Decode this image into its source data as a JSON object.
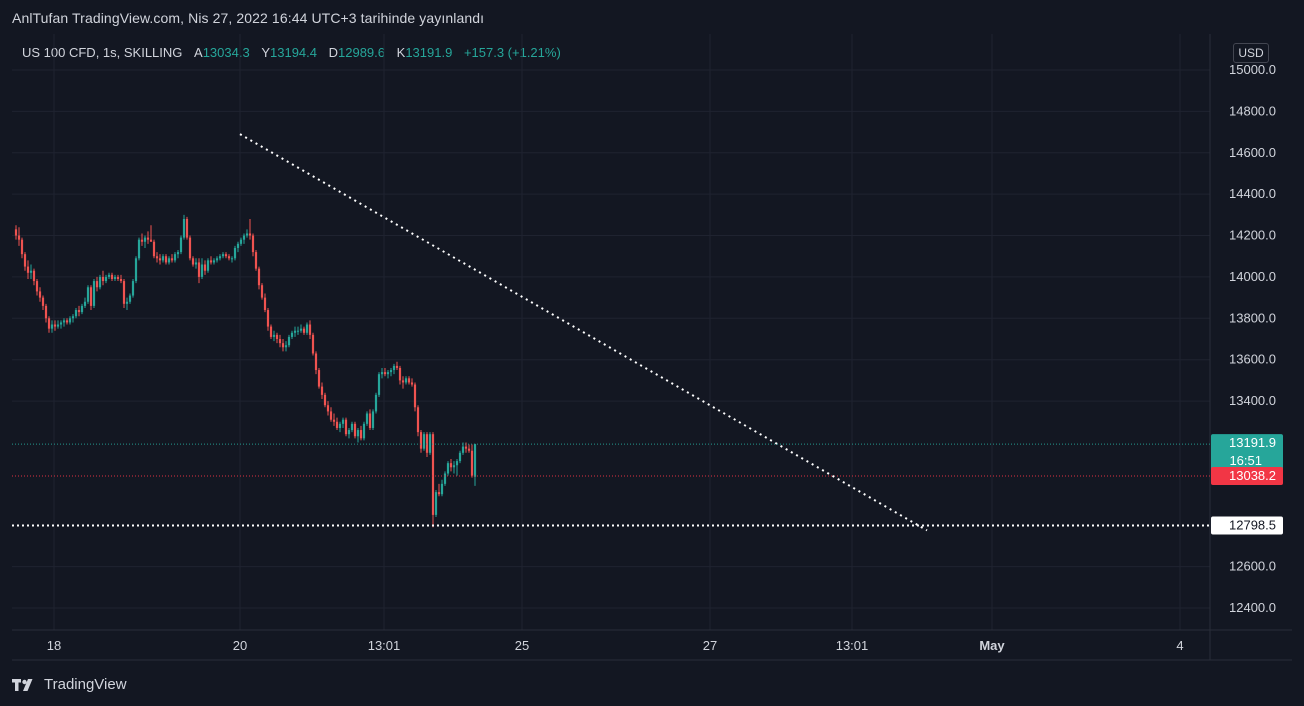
{
  "header": {
    "published": "AnlTufan TradingView.com, Nis 27, 2022 16:44 UTC+3 tarihinde yayınlandı"
  },
  "legend": {
    "symbol": "US 100 CFD, 1s, SKILLING",
    "open_label": "A",
    "open": "13034.3",
    "high_label": "Y",
    "high": "13194.4",
    "low_label": "D",
    "low": "12989.6",
    "close_label": "K",
    "close": "13191.9",
    "change": "+157.3 (+1.21%)"
  },
  "currency": "USD",
  "footer": {
    "brand": "TradingView"
  },
  "colors": {
    "background": "#131722",
    "up": "#26a69a",
    "down": "#ef5350",
    "grid": "#1f2330",
    "text": "#d1d4dc"
  },
  "chart_data": {
    "type": "candlestick",
    "title": "",
    "y_ticks": [
      "15000.0",
      "14800.0",
      "14600.0",
      "14400.0",
      "14200.0",
      "14000.0",
      "13800.0",
      "13600.0",
      "13400.0",
      "12600.0",
      "12400.0"
    ],
    "ylim": [
      12300,
      15120
    ],
    "x_ticks": [
      "18",
      "20",
      "13:01",
      "25",
      "27",
      "13:01",
      "May",
      "4"
    ],
    "price_labels": [
      {
        "price": 13191.9,
        "text": "13191.9",
        "sub": "16:51",
        "color": "#26a69a",
        "line": "dotted",
        "line_color": "#26a69a"
      },
      {
        "price": 13038.2,
        "text": "13038.2",
        "color": "#f23645",
        "line": "dotted",
        "line_color": "#f23645"
      },
      {
        "price": 12798.5,
        "text": "12798.5",
        "color": "#ffffff",
        "line": "dotted",
        "line_color": "#ffffff"
      }
    ],
    "trendline": {
      "from": {
        "x": 0,
        "y": 14690
      },
      "to": {
        "x": 195,
        "y": 12775
      }
    },
    "x_range": [
      0,
      254
    ],
    "candles": [
      [
        14230,
        14250,
        14180,
        14200
      ],
      [
        14200,
        14240,
        14150,
        14180
      ],
      [
        14180,
        14190,
        14090,
        14110
      ],
      [
        14110,
        14120,
        14030,
        14050
      ],
      [
        14050,
        14080,
        13990,
        14020
      ],
      [
        14020,
        14060,
        13990,
        14030
      ],
      [
        14030,
        14040,
        13960,
        13980
      ],
      [
        13980,
        13990,
        13910,
        13930
      ],
      [
        13930,
        13950,
        13880,
        13900
      ],
      [
        13900,
        13910,
        13840,
        13860
      ],
      [
        13860,
        13870,
        13780,
        13800
      ],
      [
        13800,
        13810,
        13730,
        13750
      ],
      [
        13750,
        13790,
        13730,
        13770
      ],
      [
        13770,
        13790,
        13740,
        13760
      ],
      [
        13760,
        13790,
        13750,
        13770
      ],
      [
        13770,
        13790,
        13750,
        13780
      ],
      [
        13780,
        13800,
        13760,
        13790
      ],
      [
        13790,
        13800,
        13770,
        13780
      ],
      [
        13780,
        13810,
        13770,
        13800
      ],
      [
        13800,
        13820,
        13780,
        13810
      ],
      [
        13810,
        13850,
        13800,
        13840
      ],
      [
        13840,
        13860,
        13810,
        13830
      ],
      [
        13830,
        13870,
        13820,
        13860
      ],
      [
        13860,
        13900,
        13850,
        13880
      ],
      [
        13880,
        13960,
        13870,
        13950
      ],
      [
        13950,
        13960,
        13840,
        13860
      ],
      [
        13860,
        13990,
        13850,
        13980
      ],
      [
        13980,
        14000,
        13930,
        13950
      ],
      [
        13950,
        14010,
        13940,
        14000
      ],
      [
        14000,
        14030,
        13960,
        13980
      ],
      [
        13980,
        14010,
        13970,
        14000
      ],
      [
        14000,
        14020,
        13990,
        14010
      ],
      [
        14010,
        14020,
        13980,
        13990
      ],
      [
        13990,
        14010,
        13980,
        14000
      ],
      [
        14000,
        14010,
        13980,
        13990
      ],
      [
        13990,
        14010,
        13970,
        13980
      ],
      [
        13980,
        13990,
        13850,
        13870
      ],
      [
        13870,
        13900,
        13840,
        13880
      ],
      [
        13880,
        13920,
        13870,
        13910
      ],
      [
        13910,
        13990,
        13900,
        13980
      ],
      [
        13980,
        14100,
        13970,
        14090
      ],
      [
        14090,
        14190,
        14080,
        14180
      ],
      [
        14180,
        14210,
        14150,
        14170
      ],
      [
        14170,
        14200,
        14140,
        14190
      ],
      [
        14190,
        14220,
        14160,
        14180
      ],
      [
        14180,
        14250,
        14170,
        14170
      ],
      [
        14170,
        14180,
        14090,
        14100
      ],
      [
        14100,
        14120,
        14070,
        14090
      ],
      [
        14090,
        14110,
        14060,
        14080
      ],
      [
        14080,
        14110,
        14070,
        14100
      ],
      [
        14100,
        14110,
        14060,
        14070
      ],
      [
        14070,
        14100,
        14060,
        14090
      ],
      [
        14090,
        14110,
        14070,
        14080
      ],
      [
        14080,
        14120,
        14070,
        14110
      ],
      [
        14110,
        14130,
        14090,
        14120
      ],
      [
        14120,
        14200,
        14110,
        14190
      ],
      [
        14190,
        14300,
        14180,
        14280
      ],
      [
        14280,
        14290,
        14180,
        14190
      ],
      [
        14190,
        14200,
        14080,
        14090
      ],
      [
        14090,
        14100,
        14050,
        14060
      ],
      [
        14060,
        14090,
        14040,
        14070
      ],
      [
        14070,
        14090,
        13970,
        14000
      ],
      [
        14000,
        14090,
        13990,
        14060
      ],
      [
        14060,
        14080,
        14010,
        14030
      ],
      [
        14030,
        14090,
        14020,
        14080
      ],
      [
        14080,
        14100,
        14060,
        14070
      ],
      [
        14070,
        14090,
        14060,
        14080
      ],
      [
        14080,
        14100,
        14070,
        14090
      ],
      [
        14090,
        14110,
        14080,
        14100
      ],
      [
        14100,
        14120,
        14090,
        14110
      ],
      [
        14110,
        14120,
        14090,
        14100
      ],
      [
        14100,
        14110,
        14080,
        14090
      ],
      [
        14090,
        14100,
        14070,
        14090
      ],
      [
        14090,
        14150,
        14080,
        14140
      ],
      [
        14140,
        14170,
        14120,
        14160
      ],
      [
        14160,
        14190,
        14150,
        14180
      ],
      [
        14180,
        14210,
        14160,
        14200
      ],
      [
        14200,
        14230,
        14190,
        14210
      ],
      [
        14210,
        14280,
        14180,
        14200
      ],
      [
        14200,
        14210,
        14100,
        14120
      ],
      [
        14120,
        14130,
        14030,
        14040
      ],
      [
        14040,
        14050,
        13940,
        13960
      ],
      [
        13960,
        13970,
        13890,
        13900
      ],
      [
        13900,
        13920,
        13830,
        13840
      ],
      [
        13840,
        13850,
        13740,
        13760
      ],
      [
        13760,
        13770,
        13700,
        13710
      ],
      [
        13710,
        13740,
        13690,
        13720
      ],
      [
        13720,
        13730,
        13680,
        13700
      ],
      [
        13700,
        13720,
        13660,
        13680
      ],
      [
        13680,
        13700,
        13640,
        13660
      ],
      [
        13660,
        13690,
        13640,
        13670
      ],
      [
        13670,
        13720,
        13660,
        13710
      ],
      [
        13710,
        13740,
        13700,
        13730
      ],
      [
        13730,
        13760,
        13710,
        13740
      ],
      [
        13740,
        13760,
        13720,
        13740
      ],
      [
        13740,
        13770,
        13730,
        13750
      ],
      [
        13750,
        13760,
        13720,
        13730
      ],
      [
        13730,
        13780,
        13720,
        13770
      ],
      [
        13770,
        13790,
        13700,
        13720
      ],
      [
        13720,
        13730,
        13620,
        13630
      ],
      [
        13630,
        13640,
        13530,
        13550
      ],
      [
        13550,
        13560,
        13460,
        13470
      ],
      [
        13470,
        13490,
        13410,
        13430
      ],
      [
        13430,
        13440,
        13370,
        13380
      ],
      [
        13380,
        13400,
        13330,
        13350
      ],
      [
        13350,
        13370,
        13300,
        13310
      ],
      [
        13310,
        13340,
        13280,
        13300
      ],
      [
        13300,
        13320,
        13260,
        13270
      ],
      [
        13270,
        13300,
        13250,
        13290
      ],
      [
        13290,
        13320,
        13270,
        13310
      ],
      [
        13310,
        13320,
        13230,
        13240
      ],
      [
        13240,
        13270,
        13220,
        13260
      ],
      [
        13260,
        13300,
        13250,
        13290
      ],
      [
        13290,
        13300,
        13220,
        13230
      ],
      [
        13230,
        13270,
        13200,
        13260
      ],
      [
        13260,
        13280,
        13210,
        13220
      ],
      [
        13220,
        13300,
        13210,
        13290
      ],
      [
        13290,
        13350,
        13280,
        13340
      ],
      [
        13340,
        13360,
        13260,
        13270
      ],
      [
        13270,
        13360,
        13260,
        13350
      ],
      [
        13350,
        13440,
        13340,
        13430
      ],
      [
        13430,
        13540,
        13420,
        13530
      ],
      [
        13530,
        13560,
        13510,
        13540
      ],
      [
        13540,
        13560,
        13520,
        13530
      ],
      [
        13530,
        13550,
        13510,
        13540
      ],
      [
        13540,
        13560,
        13520,
        13550
      ],
      [
        13550,
        13580,
        13530,
        13570
      ],
      [
        13570,
        13590,
        13550,
        13560
      ],
      [
        13560,
        13570,
        13480,
        13500
      ],
      [
        13500,
        13520,
        13460,
        13490
      ],
      [
        13490,
        13520,
        13480,
        13510
      ],
      [
        13510,
        13520,
        13480,
        13490
      ],
      [
        13490,
        13510,
        13470,
        13480
      ],
      [
        13480,
        13490,
        13350,
        13370
      ],
      [
        13370,
        13380,
        13230,
        13250
      ],
      [
        13250,
        13260,
        13150,
        13170
      ],
      [
        13170,
        13250,
        13160,
        13240
      ],
      [
        13240,
        13250,
        13130,
        13150
      ],
      [
        13150,
        13250,
        13140,
        13240
      ],
      [
        13240,
        13250,
        12790,
        12850
      ],
      [
        12850,
        12970,
        12840,
        12960
      ],
      [
        12960,
        13000,
        12940,
        12950
      ],
      [
        12950,
        13020,
        12940,
        13000
      ],
      [
        13000,
        13060,
        12990,
        13050
      ],
      [
        13050,
        13110,
        13040,
        13100
      ],
      [
        13100,
        13120,
        13060,
        13080
      ],
      [
        13080,
        13110,
        13050,
        13090
      ],
      [
        13090,
        13120,
        13040,
        13110
      ],
      [
        13110,
        13160,
        13100,
        13150
      ],
      [
        13150,
        13200,
        13140,
        13180
      ],
      [
        13180,
        13200,
        13150,
        13170
      ],
      [
        13170,
        13190,
        13150,
        13160
      ],
      [
        13160,
        13190,
        13030,
        13040
      ],
      [
        13034,
        13194,
        12990,
        13192
      ]
    ]
  }
}
